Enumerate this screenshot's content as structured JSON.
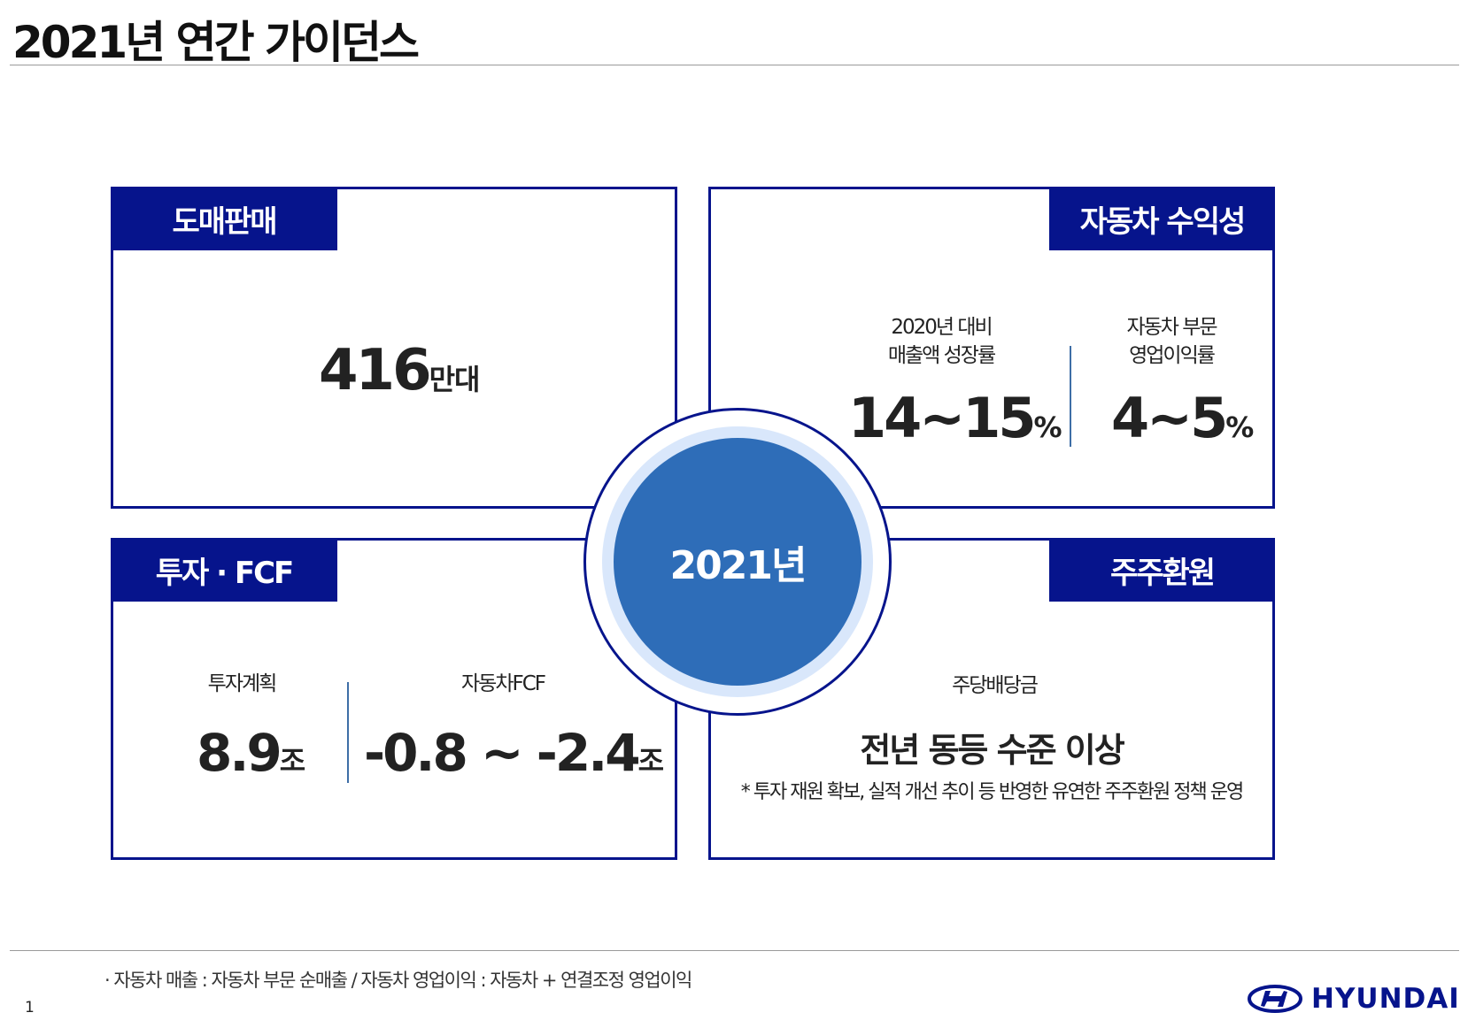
{
  "page": {
    "title": "2021년 연간 가이던스",
    "page_number": "1"
  },
  "center": {
    "label": "2021년"
  },
  "panels": {
    "wholesale": {
      "tab": "도매판매",
      "value": "416",
      "unit": "만대"
    },
    "auto_profitability": {
      "tab": "자동차 수익성",
      "left_label_line1": "2020년 대비",
      "left_label_line2": "매출액 성장률",
      "left_value": "14~15",
      "left_unit": "%",
      "right_label_line1": "자동차 부문",
      "right_label_line2": "영업이익률",
      "right_value": "4~5",
      "right_unit": "%"
    },
    "investment": {
      "tab": "투자 · FCF",
      "left_label": "투자계획",
      "left_value": "8.9",
      "left_unit": "조",
      "right_label": "자동차FCF",
      "right_value": "-0.8 ~ -2.4",
      "right_unit": "조"
    },
    "shareholder": {
      "tab": "주주환원",
      "label": "주당배당금",
      "value": "전년 동등 수준 이상",
      "note": "* 투자 재원 확보, 실적 개선 추이 등 반영한 유연한 주주환원 정책 운영"
    }
  },
  "footnote": "· 자동차 매출 : 자동차 부문 순매출 / 자동차 영업이익 : 자동차 + 연결조정 영업이익",
  "logo": {
    "text": "HYUNDAI",
    "icon": "hyundai-logo-icon",
    "color": "#06148c"
  },
  "colors": {
    "navy": "#06148c",
    "center_blue": "#2e6db8",
    "halo": "#d9e7fb"
  }
}
